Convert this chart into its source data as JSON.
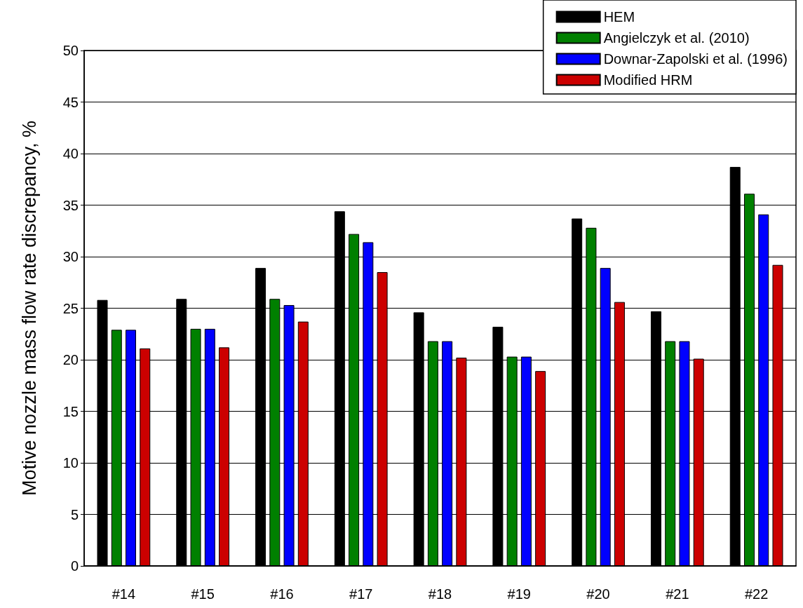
{
  "chart_data": {
    "type": "bar",
    "ylabel": "Motive nozzle mass flow rate discrepancy, %",
    "categories": [
      "#14",
      "#15",
      "#16",
      "#17",
      "#18",
      "#19",
      "#20",
      "#21",
      "#22"
    ],
    "series": [
      {
        "name": "HEM",
        "color": "#000000",
        "values": [
          25.8,
          25.9,
          28.9,
          34.4,
          24.6,
          23.2,
          33.7,
          24.7,
          38.7
        ]
      },
      {
        "name": "Angielczyk et al. (2010)",
        "color": "#008000",
        "values": [
          22.9,
          23.0,
          25.9,
          32.2,
          21.8,
          20.3,
          32.8,
          21.8,
          36.1
        ]
      },
      {
        "name": "Downar-Zapolski et al. (1996)",
        "color": "#0000ff",
        "values": [
          22.9,
          23.0,
          25.3,
          31.4,
          21.8,
          20.3,
          28.9,
          21.8,
          34.1
        ]
      },
      {
        "name": "Modified HRM",
        "color": "#cc0000",
        "values": [
          21.1,
          21.2,
          23.7,
          28.5,
          20.2,
          18.9,
          25.6,
          20.1,
          29.2
        ]
      }
    ],
    "ylim": [
      0,
      50
    ],
    "yticks": [
      0,
      5,
      10,
      15,
      20,
      25,
      30,
      35,
      40,
      45,
      50
    ],
    "grid": "y",
    "legend": "top right"
  }
}
